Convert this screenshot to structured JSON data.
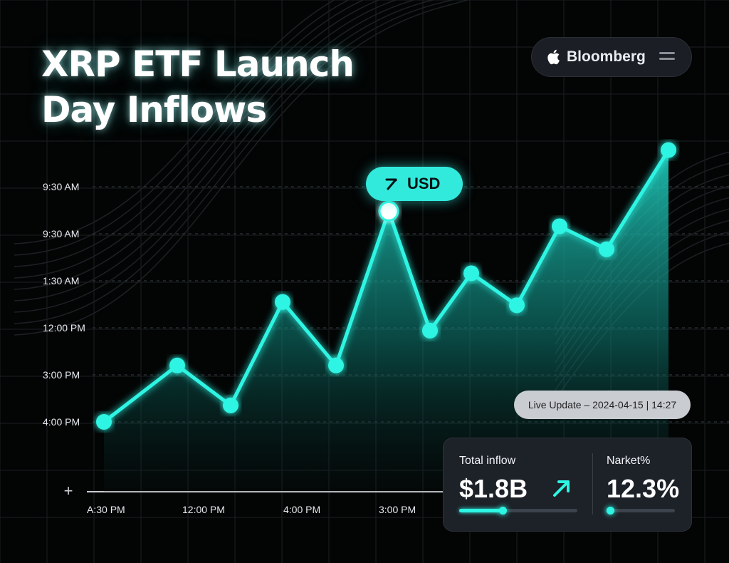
{
  "header": {
    "title_line1": "XRP ETF Launch",
    "title_line2": "Day Inflows"
  },
  "brand": {
    "name": "Bloomberg",
    "logo_icon": "apple-logo-icon",
    "menu_icon": "hamburger-menu-icon"
  },
  "tooltip": {
    "label": "USD",
    "icon": "arrow-up-right-icon"
  },
  "live_update": {
    "text": "Live Update – 2024-04-15 | 14:27"
  },
  "stats": {
    "total_inflow": {
      "label": "Total inflow",
      "value": "$1.8B",
      "progress": 0.37,
      "icon": "trend-up-arrow-icon"
    },
    "market": {
      "label": "Narket%",
      "value": "12.3%",
      "progress": 0.05
    }
  },
  "axis_extra": {
    "plus": "+"
  },
  "colors": {
    "accent": "#2ef5e3",
    "background": "#030404",
    "panel": "#1d2128"
  },
  "chart_data": {
    "type": "area",
    "title": "XRP ETF Launch Day Inflows",
    "ylabel": "",
    "xlabel": "",
    "y_tick_labels": [
      "9:30 AM",
      "9:30 AM",
      "1:30 AM",
      "12:00 PM",
      "3:00 PM",
      "4:00 PM"
    ],
    "x_tick_labels": [
      "A:30 PM",
      "12:00 PM",
      "4:00 PM",
      "3:00 PM"
    ],
    "ylim": [
      0,
      6
    ],
    "grid": true,
    "series": [
      {
        "values": [
          0.0,
          1.2,
          0.35,
          2.55,
          1.2,
          4.48,
          1.94,
          3.16,
          2.48,
          4.16,
          3.67,
          5.78
        ],
        "highlight_index": 5
      }
    ]
  }
}
